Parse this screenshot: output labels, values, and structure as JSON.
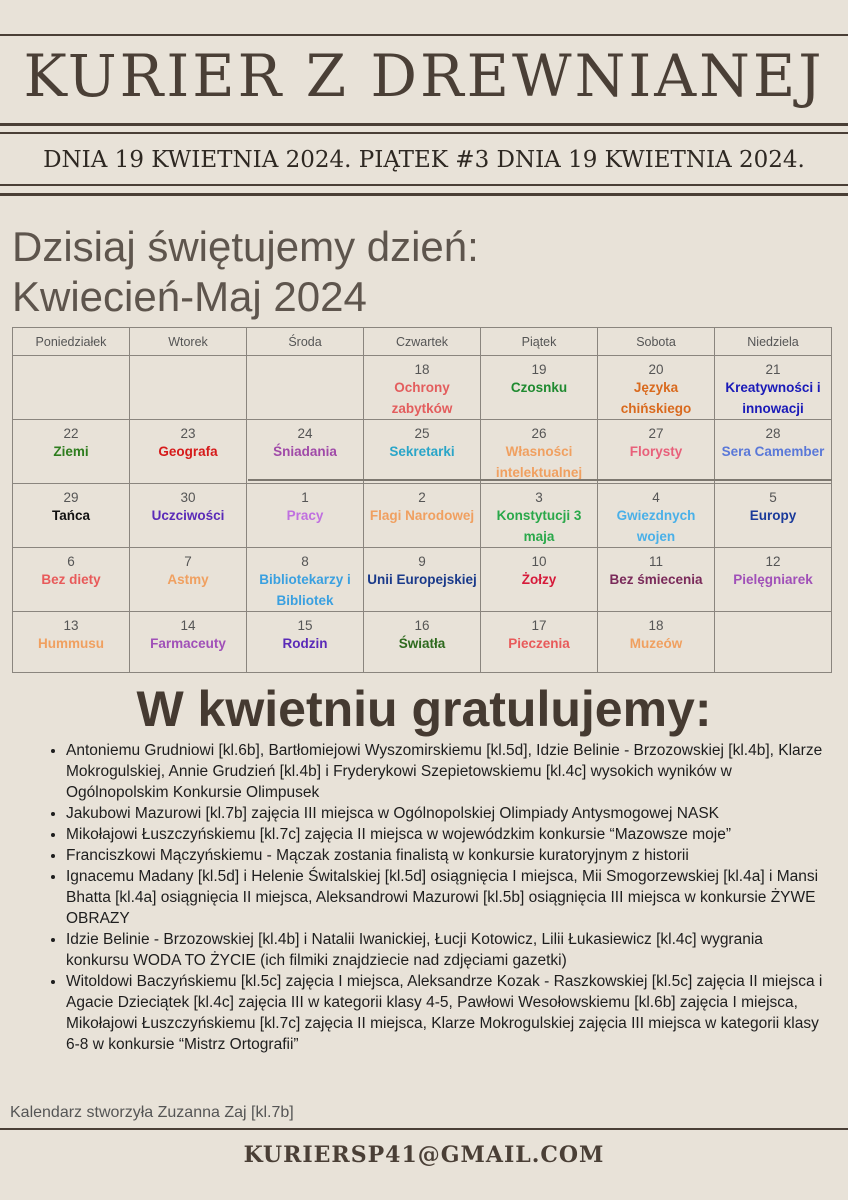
{
  "header": {
    "title": "KURIER Z DREWNIANEJ",
    "dateline": "DNIA 19 KWIETNIA 2024. PIĄTEK #3 DNIA 19 KWIETNIA 2024."
  },
  "calendar": {
    "heading": "Dzisiaj świętujemy dzień:",
    "subheading": "Kwiecień-Maj 2024",
    "weekdays": [
      "Poniedziałek",
      "Wtorek",
      "Środa",
      "Czwartek",
      "Piątek",
      "Sobota",
      "Niedziela"
    ],
    "weeks": [
      [
        null,
        null,
        null,
        {
          "day": "18",
          "name": "Ochrony zabytków",
          "color": "#e35d5d"
        },
        {
          "day": "19",
          "name": "Czosnku",
          "color": "#1f8a30"
        },
        {
          "day": "20",
          "name": "Języka chińskiego",
          "color": "#d96a1e"
        },
        {
          "day": "21",
          "name": "Kreatywności i innowacji",
          "color": "#1a1ab8"
        }
      ],
      [
        {
          "day": "22",
          "name": "Ziemi",
          "color": "#2e7d1e"
        },
        {
          "day": "23",
          "name": "Geografa",
          "color": "#d61a1a"
        },
        {
          "day": "24",
          "name": "Śniadania",
          "color": "#a04aa8"
        },
        {
          "day": "25",
          "name": "Sekretarki",
          "color": "#2aa5c8"
        },
        {
          "day": "26",
          "name": "Własności intelektualnej",
          "color": "#f0a060"
        },
        {
          "day": "27",
          "name": "Florysty",
          "color": "#e8607a"
        },
        {
          "day": "28",
          "name": "Sera Camember",
          "color": "#5a78d8"
        }
      ],
      [
        {
          "day": "29",
          "name": "Tańca",
          "color": "#111111"
        },
        {
          "day": "30",
          "name": "Uczciwości",
          "color": "#5a2ab8"
        },
        {
          "day": "1",
          "name": "Pracy",
          "color": "#c070e0"
        },
        {
          "day": "2",
          "name": "Flagi Narodowej",
          "color": "#f0a060"
        },
        {
          "day": "3",
          "name": "Konstytucji 3 maja",
          "color": "#2aa84a"
        },
        {
          "day": "4",
          "name": "Gwiezdnych wojen",
          "color": "#4ab0e8"
        },
        {
          "day": "5",
          "name": "Europy",
          "color": "#1a3a9a"
        }
      ],
      [
        {
          "day": "6",
          "name": "Bez diety",
          "color": "#e85a5a"
        },
        {
          "day": "7",
          "name": "Astmy",
          "color": "#f0a060"
        },
        {
          "day": "8",
          "name": "Bibliotekarzy i Bibliotek",
          "color": "#3aa0e0"
        },
        {
          "day": "9",
          "name": "Unii Europejskiej",
          "color": "#1a3a8a"
        },
        {
          "day": "10",
          "name": "Żołzy",
          "color": "#d61a3a"
        },
        {
          "day": "11",
          "name": "Bez śmiecenia",
          "color": "#7a2a5a"
        },
        {
          "day": "12",
          "name": "Pielęgniarek",
          "color": "#a050b8"
        }
      ],
      [
        {
          "day": "13",
          "name": "Hummusu",
          "color": "#f0a060"
        },
        {
          "day": "14",
          "name": "Farmaceuty",
          "color": "#a050b8"
        },
        {
          "day": "15",
          "name": "Rodzin",
          "color": "#5a2ab8"
        },
        {
          "day": "16",
          "name": "Światła",
          "color": "#2e6a1e"
        },
        {
          "day": "17",
          "name": "Pieczenia",
          "color": "#e85a5a"
        },
        {
          "day": "18",
          "name": "Muzeów",
          "color": "#f0a060"
        },
        null
      ]
    ]
  },
  "congrats": {
    "heading": "W kwietniu gratulujemy:",
    "items": [
      "Antoniemu Grudniowi [kl.6b], Bartłomiejowi Wyszomirskiemu [kl.5d], Idzie Belinie - Brzozowskiej [kl.4b], Klarze Mokrogulskiej, Annie Grudzień [kl.4b] i Fryderykowi Szepietowskiemu [kl.4c] wysokich wyników w Ogólnopolskim Konkursie Olimpusek",
      "Jakubowi Mazurowi [kl.7b] zajęcia III miejsca w Ogólnopolskiej Olimpiady Antysmogowej NASK",
      "Mikołajowi Łuszczyńskiemu [kl.7c] zajęcia II miejsca w wojewódzkim konkursie “Mazowsze moje”",
      "Franciszkowi Mączyńskiemu - Mączak zostania finalistą w konkursie kuratoryjnym z historii",
      "Ignacemu Madany [kl.5d] i Helenie Świtalskiej [kl.5d] osiągnięcia I miejsca, Mii Smogorzewskiej [kl.4a] i Mansi Bhatta [kl.4a] osiągnięcia II miejsca, Aleksandrowi Mazurowi [kl.5b] osiągnięcia III miejsca  w konkursie ŻYWE OBRAZY",
      "Idzie Belinie - Brzozowskiej [kl.4b] i Natalii Iwanickiej, Łucji Kotowicz, Lilii Łukasiewicz [kl.4c] wygrania konkursu WODA TO ŻYCIE (ich filmiki znajdziecie nad zdjęciami gazetki)",
      "Witoldowi Baczyńskiemu [kl.5c] zajęcia I miejsca, Aleksandrze Kozak - Raszkowskiej [kl.5c] zajęcia II miejsca i Agacie Dzieciątek [kl.4c] zajęcia III w kategorii klasy 4-5, Pawłowi Wesołowskiemu [kl.6b] zajęcia I miejsca, Mikołajowi Łuszczyńskiemu [kl.7c] zajęcia II miejsca, Klarze Mokrogulskiej zajęcia III miejsca w kategorii klasy 6-8 w konkursie “Mistrz Ortografii”"
    ]
  },
  "footer": {
    "credit": "Kalendarz stworzyła Zuzanna Zaj [kl.7b]",
    "email": "KURIERSP41@GMAIL.COM"
  }
}
